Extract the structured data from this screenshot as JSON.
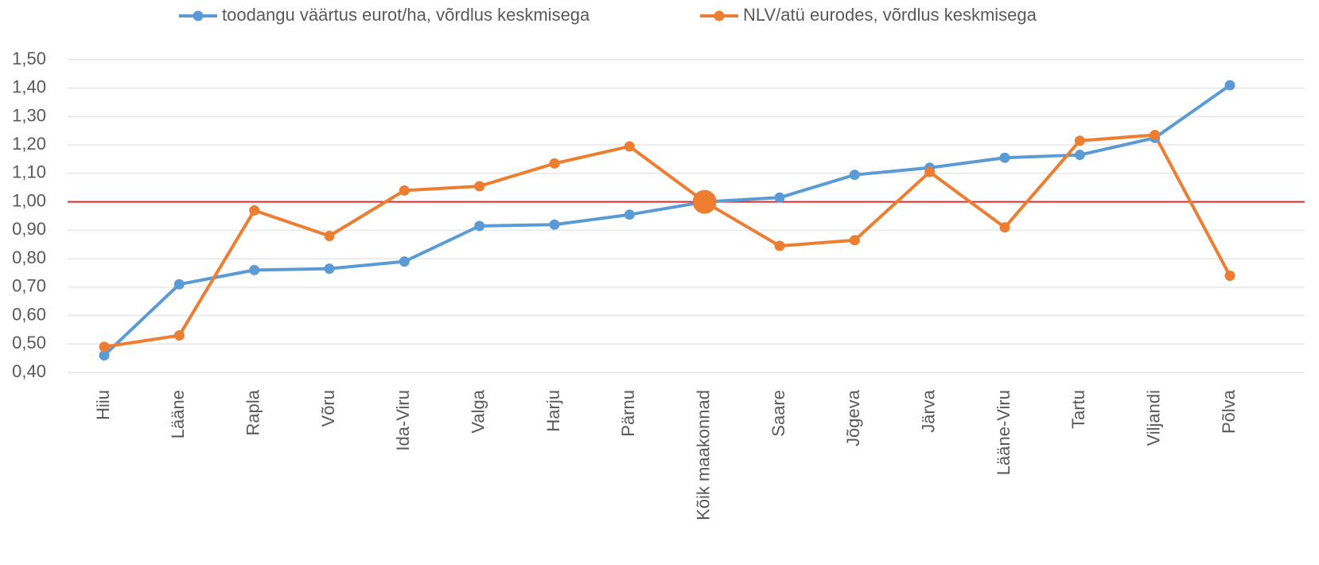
{
  "chart_data": {
    "type": "line",
    "categories": [
      "Hiiu",
      "Lääne",
      "Rapla",
      "Võru",
      "Ida-Viru",
      "Valga",
      "Harju",
      "Pärnu",
      "Kõik maakonnad",
      "Saare",
      "Jõgeva",
      "Järva",
      "Lääne-Viru",
      "Tartu",
      "Viljandi",
      "Põlva"
    ],
    "series": [
      {
        "name": "toodangu väärtus eurot/ha, võrdlus keskmisega",
        "color": "#5b9bd5",
        "values": [
          0.46,
          0.71,
          0.76,
          0.765,
          0.79,
          0.915,
          0.92,
          0.955,
          1.0,
          1.015,
          1.095,
          1.12,
          1.155,
          1.165,
          1.225,
          1.41
        ]
      },
      {
        "name": "NLV/atü eurodes, võrdlus keskmisega",
        "color": "#ed7d31",
        "values": [
          0.49,
          0.53,
          0.97,
          0.88,
          1.04,
          1.055,
          1.135,
          1.195,
          1.0,
          0.845,
          0.865,
          1.105,
          0.91,
          1.215,
          1.235,
          0.74
        ]
      }
    ],
    "ylim": [
      0.4,
      1.5
    ],
    "yticks": [
      {
        "value": 0.4,
        "label": "0,40"
      },
      {
        "value": 0.5,
        "label": "0,50"
      },
      {
        "value": 0.6,
        "label": "0,60"
      },
      {
        "value": 0.7,
        "label": "0,70"
      },
      {
        "value": 0.8,
        "label": "0,80"
      },
      {
        "value": 0.9,
        "label": "0,90"
      },
      {
        "value": 1.0,
        "label": "1,00"
      },
      {
        "value": 1.1,
        "label": "1,10"
      },
      {
        "value": 1.2,
        "label": "1,20"
      },
      {
        "value": 1.3,
        "label": "1,30"
      },
      {
        "value": 1.4,
        "label": "1,40"
      },
      {
        "value": 1.5,
        "label": "1,50"
      }
    ],
    "grid": true,
    "legend": "top",
    "reference_line": {
      "value": 1.0,
      "color": "#e8262a"
    }
  }
}
